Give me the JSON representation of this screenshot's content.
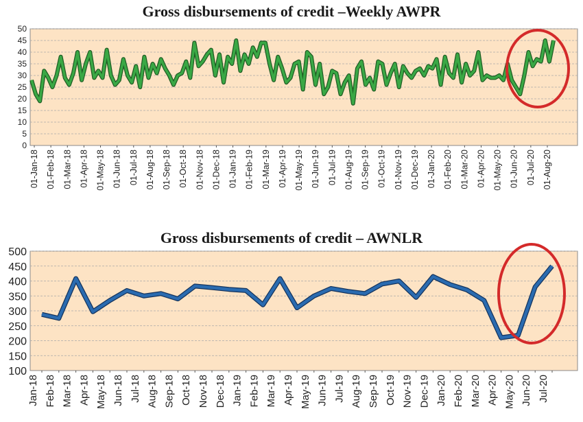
{
  "chart_data": [
    {
      "type": "line",
      "title": "Gross disbursements of credit –Weekly AWPR",
      "xlabel": "",
      "ylabel": "",
      "ylim": [
        0,
        50
      ],
      "yticks": [
        0,
        5,
        10,
        15,
        20,
        25,
        30,
        35,
        40,
        45,
        50
      ],
      "x_tick_labels": [
        "01-Jan-18",
        "01-Feb-18",
        "01-Mar-18",
        "01-Apr-18",
        "01-May-18",
        "01-Jun-18",
        "01-Jul-18",
        "01-Aug-18",
        "01-Sep-18",
        "01-Oct-18",
        "01-Nov-18",
        "01-Dec-18",
        "01-Jan-19",
        "01-Feb-19",
        "01-Mar-19",
        "01-Apr-19",
        "01-May-19",
        "01-Jun-19",
        "01-Jul-19",
        "01-Aug-19",
        "01-Sep-19",
        "01-Oct-19",
        "01-Nov-19",
        "01-Dec-19",
        "01-Jan-20",
        "01-Feb-20",
        "01-Mar-20",
        "01-Apr-20",
        "01-May-20",
        "01-Jun-20",
        "01-Jul-20",
        "01-Aug-20"
      ],
      "grid": true,
      "background": "#fde3c4",
      "line_color": "#3aa845",
      "highlight_color": "#d42a2a",
      "highlight": "ellipse around the last weeks (Jun-20 to Aug-20)",
      "values": [
        28,
        22,
        19,
        32,
        29,
        25,
        30,
        38,
        29,
        26,
        31,
        40,
        28,
        35,
        40,
        29,
        32,
        29,
        41,
        30,
        26,
        28,
        37,
        30,
        27,
        34,
        25,
        38,
        29,
        35,
        31,
        37,
        33,
        30,
        26,
        30,
        31,
        36,
        29,
        44,
        34,
        36,
        39,
        41,
        30,
        39,
        27,
        38,
        35,
        45,
        32,
        39,
        35,
        42,
        38,
        44,
        44,
        35,
        28,
        38,
        33,
        27,
        29,
        35,
        36,
        24,
        40,
        38,
        26,
        35,
        22,
        25,
        32,
        31,
        22,
        27,
        30,
        18,
        33,
        36,
        26,
        29,
        24,
        36,
        35,
        26,
        31,
        35,
        25,
        34,
        31,
        29,
        32,
        33,
        30,
        34,
        33,
        37,
        26,
        38,
        31,
        29,
        39,
        27,
        35,
        30,
        32,
        40,
        28,
        30,
        29,
        29,
        30,
        28,
        35,
        28,
        25,
        22,
        30,
        40,
        34,
        37,
        36,
        45,
        36,
        45
      ]
    },
    {
      "type": "line",
      "title": "Gross disbursements of credit – AWNLR",
      "xlabel": "",
      "ylabel": "",
      "ylim": [
        100,
        500
      ],
      "yticks": [
        100,
        150,
        200,
        250,
        300,
        350,
        400,
        450,
        500
      ],
      "categories": [
        "Jan-18",
        "Feb-18",
        "Mar-18",
        "Apr-18",
        "May-18",
        "Jun-18",
        "Jul-18",
        "Aug-18",
        "Sep-18",
        "Oct-18",
        "Nov-18",
        "Dec-18",
        "Jan-19",
        "Feb-19",
        "Mar-19",
        "Apr-19",
        "May-19",
        "Jun-19",
        "Jul-19",
        "Aug-19",
        "Sep-19",
        "Oct-19",
        "Nov-19",
        "Dec-19",
        "Jan-20",
        "Feb-20",
        "Mar-20",
        "Apr-20",
        "May-20",
        "Jun-20",
        "Jul-20"
      ],
      "values": [
        288,
        275,
        408,
        297,
        335,
        368,
        350,
        358,
        340,
        383,
        378,
        372,
        368,
        320,
        408,
        310,
        350,
        375,
        365,
        358,
        390,
        400,
        345,
        415,
        388,
        370,
        335,
        210,
        218,
        380,
        450
      ],
      "grid": true,
      "background": "#fde3c4",
      "line_color": "#2a6bb0",
      "highlight_color": "#d42a2a",
      "highlight": "ellipse around Apr-20 to Jul-20"
    }
  ]
}
